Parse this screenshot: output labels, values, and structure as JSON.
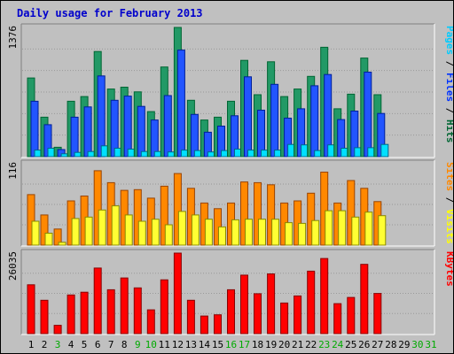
{
  "chart_data": {
    "type": "bar",
    "title": "Daily usage for February 2013",
    "categories": [
      "1",
      "2",
      "3",
      "4",
      "5",
      "6",
      "7",
      "8",
      "9",
      "10",
      "11",
      "12",
      "13",
      "14",
      "15",
      "16",
      "17",
      "18",
      "19",
      "20",
      "21",
      "22",
      "23",
      "24",
      "25",
      "26",
      "27",
      "28",
      "29",
      "30",
      "31"
    ],
    "weekend_days": [
      "3",
      "9",
      "10",
      "16",
      "17",
      "23",
      "24",
      "30",
      "31"
    ],
    "empty_days": [
      "29",
      "30",
      "31"
    ],
    "panels": [
      {
        "id": "hits",
        "ymax_label": "1376",
        "ymax": 1376,
        "axis_label_parts": [
          {
            "text": "Pages",
            "color": "#00ccff"
          },
          {
            "text": " / ",
            "color": "#000000"
          },
          {
            "text": "Files",
            "color": "#0033ff"
          },
          {
            "text": " / ",
            "color": "#000000"
          },
          {
            "text": "Hits",
            "color": "#006633"
          }
        ],
        "series": [
          {
            "name": "Hits",
            "color": "#006633",
            "fill": "#229966",
            "values": [
              838,
              420,
              100,
              590,
              640,
              1120,
              720,
              740,
              690,
              480,
              955,
              1376,
              600,
              390,
              420,
              590,
              1025,
              660,
              1010,
              640,
              720,
              855,
              1165,
              510,
              665,
              1050,
              660,
              0,
              0,
              0,
              0
            ]
          },
          {
            "name": "Files",
            "color": "#001f99",
            "fill": "#2255ff",
            "values": [
              590,
              340,
              75,
              420,
              530,
              860,
              600,
              645,
              535,
              390,
              650,
              1135,
              450,
              260,
              325,
              435,
              850,
              495,
              770,
              410,
              510,
              755,
              875,
              395,
              485,
              900,
              460,
              0,
              0,
              0,
              0
            ]
          },
          {
            "name": "Pages",
            "color": "#006688",
            "fill": "#00e0ff",
            "values": [
              70,
              90,
              30,
              45,
              55,
              115,
              90,
              80,
              55,
              55,
              50,
              70,
              65,
              50,
              65,
              80,
              70,
              70,
              70,
              130,
              125,
              65,
              125,
              90,
              95,
              95,
              130,
              0,
              0,
              0,
              0
            ]
          }
        ]
      },
      {
        "id": "visits",
        "ymax_label": "116",
        "ymax": 116,
        "axis_label_parts": [
          {
            "text": "Sites",
            "color": "#ff8800"
          },
          {
            "text": " / ",
            "color": "#000000"
          },
          {
            "text": "Visits",
            "color": "#ffff00"
          }
        ],
        "series": [
          {
            "name": "Visits",
            "color": "#994400",
            "fill": "#ff8800",
            "values": [
              72,
              43,
              23,
              63,
              70,
              106,
              89,
              78,
              79,
              67,
              84,
              102,
              81,
              60,
              52,
              60,
              90,
              89,
              86,
              60,
              63,
              74,
              104,
              60,
              92,
              81,
              62,
              0,
              0,
              0,
              0
            ]
          },
          {
            "name": "Sites",
            "color": "#888800",
            "fill": "#ffff33",
            "values": [
              34,
              17,
              4,
              38,
              40,
              50,
              56,
              43,
              34,
              37,
              29,
              48,
              43,
              37,
              26,
              36,
              37,
              37,
              37,
              32,
              31,
              35,
              49,
              49,
              40,
              47,
              42,
              0,
              0,
              0,
              0
            ]
          }
        ]
      },
      {
        "id": "kbytes",
        "ymax_label": "26035",
        "ymax": 26035,
        "axis_label_parts": [
          {
            "text": "KBytes",
            "color": "#ff0000"
          }
        ],
        "series": [
          {
            "name": "KBytes",
            "color": "#880000",
            "fill": "#ff0000",
            "values": [
              15800,
              10800,
              2700,
              12500,
              13400,
              21200,
              14200,
              18000,
              14800,
              7700,
              17400,
              26035,
              10800,
              5700,
              6100,
              14200,
              18900,
              12900,
              19300,
              9900,
              12200,
              20200,
              24300,
              9700,
              11700,
              22400,
              13000,
              0,
              0,
              0,
              0
            ]
          }
        ]
      }
    ]
  }
}
